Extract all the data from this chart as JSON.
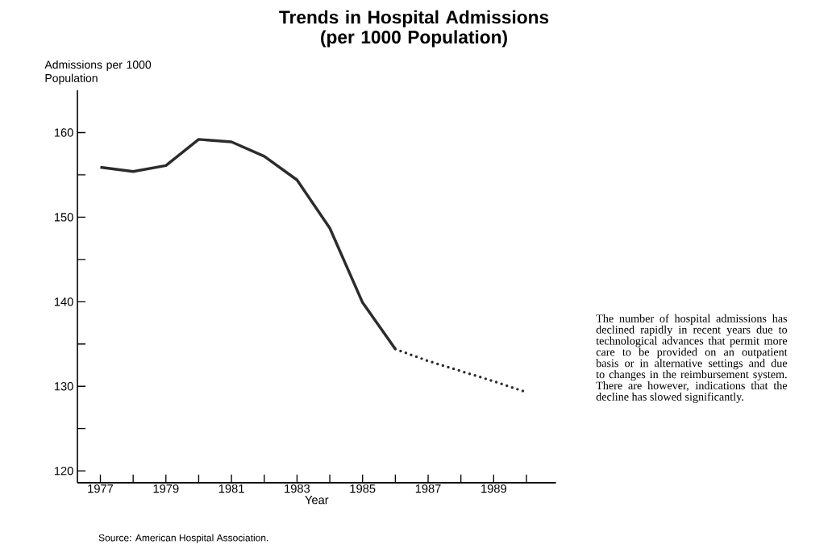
{
  "chart_data": {
    "type": "line",
    "title": "Trends in Hospital Admissions (per 1000 Population)",
    "xlabel": "Year",
    "ylabel": "Admissions per 1000 Population",
    "x": [
      1977,
      1978,
      1979,
      1980,
      1981,
      1982,
      1983,
      1984,
      1985,
      1986
    ],
    "series": [
      {
        "color": "#2b2b2b",
        "line_style": "solid",
        "values": [
          155.9,
          155.4,
          156.1,
          159.2,
          158.9,
          157.2,
          154.4,
          148.7,
          139.9,
          134.4
        ]
      },
      {
        "color": "#2b2b2b",
        "line_style": "dotted",
        "x": [
          1986,
          1987,
          1988,
          1989,
          1990
        ],
        "values": [
          134.4,
          133.0,
          131.8,
          130.6,
          129.3
        ]
      }
    ],
    "xlim": [
      1976.3,
      1990.9
    ],
    "ylim": [
      118.6,
      165
    ],
    "xticks": [
      1977,
      {
        "value": 1978,
        "label": null
      },
      1979,
      {
        "value": 1980,
        "label": null
      },
      1981,
      {
        "value": 1982,
        "label": null
      },
      1983,
      {
        "value": 1984,
        "label": null
      },
      1985,
      {
        "value": 1986,
        "label": null
      },
      1987,
      {
        "value": 1988,
        "label": null
      },
      1989,
      {
        "value": 1990,
        "label": null
      }
    ],
    "yticks": [
      120,
      {
        "value": 125,
        "label": null
      },
      130,
      {
        "value": 135,
        "label": null
      },
      140,
      {
        "value": 145,
        "label": null
      },
      150,
      {
        "value": 155,
        "label": null
      },
      160
    ],
    "grid": false,
    "marker": "none",
    "annotations": [
      "The number of hospital admissions has declined rapidly in recent years due to technological advances that permit more care to be provided on an outpatient basis or in alternative settings and due to changes in the reimbursement system. There are however, indications that the decline has slowed significantly.",
      "Source: American Hospital Association."
    ]
  }
}
